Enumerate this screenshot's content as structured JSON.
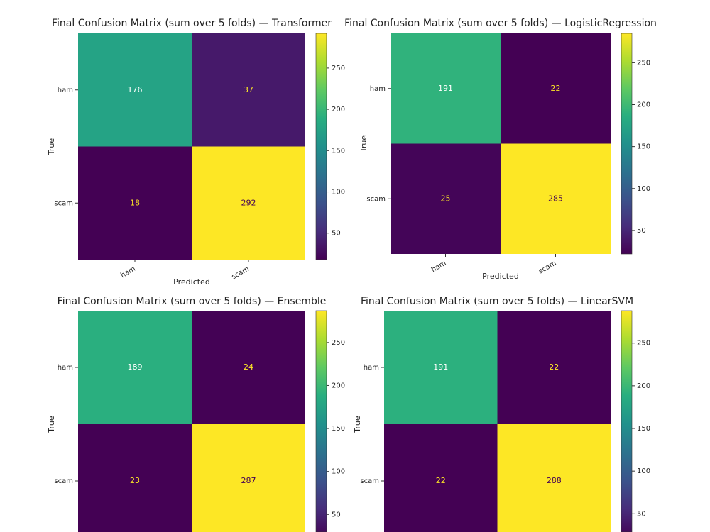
{
  "chart_data": [
    {
      "type": "heatmap",
      "title": "Final Confusion Matrix (sum over 5 folds) — Transformer",
      "xlabel": "Predicted",
      "ylabel": "True",
      "x_categories": [
        "ham",
        "scam"
      ],
      "y_categories": [
        "ham",
        "scam"
      ],
      "values": [
        [
          176,
          37
        ],
        [
          18,
          292
        ]
      ],
      "colormap": "viridis",
      "colorbar_lim": [
        18,
        292
      ],
      "colorbar_ticks": [
        50,
        100,
        150,
        200,
        250
      ]
    },
    {
      "type": "heatmap",
      "title": "Final Confusion Matrix (sum over 5 folds) — LogisticRegression",
      "xlabel": "Predicted",
      "ylabel": "True",
      "x_categories": [
        "ham",
        "scam"
      ],
      "y_categories": [
        "ham",
        "scam"
      ],
      "values": [
        [
          191,
          22
        ],
        [
          25,
          285
        ]
      ],
      "colormap": "viridis",
      "colorbar_lim": [
        22,
        285
      ],
      "colorbar_ticks": [
        50,
        100,
        150,
        200,
        250
      ]
    },
    {
      "type": "heatmap",
      "title": "Final Confusion Matrix (sum over 5 folds) — Ensemble",
      "ylabel": "True",
      "x_categories": [
        null,
        null
      ],
      "y_categories": [
        "ham",
        "scam"
      ],
      "values": [
        [
          189,
          24
        ],
        [
          23,
          287
        ]
      ],
      "colormap": "viridis",
      "colorbar_lim": [
        23,
        287
      ],
      "colorbar_ticks": [
        50,
        100,
        150,
        200,
        250
      ]
    },
    {
      "type": "heatmap",
      "title": "Final Confusion Matrix (sum over 5 folds) — LinearSVM",
      "ylabel": "True",
      "x_categories": [
        null,
        null
      ],
      "y_categories": [
        "ham",
        "scam"
      ],
      "values": [
        [
          191,
          22
        ],
        [
          22,
          288
        ]
      ],
      "colormap": "viridis",
      "colorbar_lim": [
        22,
        288
      ],
      "colorbar_ticks": [
        50,
        100,
        150,
        200,
        250
      ]
    }
  ]
}
